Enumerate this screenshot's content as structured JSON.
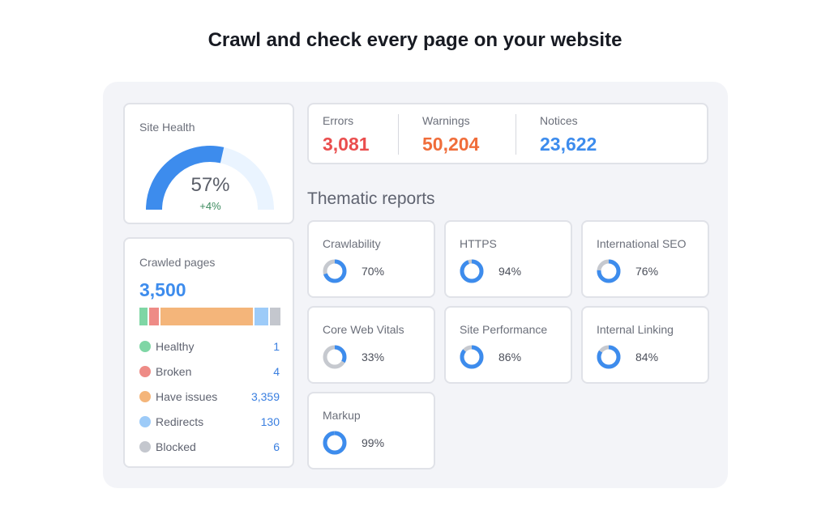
{
  "title": "Crawl and check every page on your website",
  "site_health": {
    "label": "Site Health",
    "value": "57%",
    "percent": 57,
    "change": "+4%"
  },
  "crawled": {
    "label": "Crawled pages",
    "total": "3,500",
    "items": [
      {
        "label": "Healthy",
        "value": "1",
        "color": "#7fd6a5"
      },
      {
        "label": "Broken",
        "value": "4",
        "color": "#ee8b86"
      },
      {
        "label": "Have issues",
        "value": "3,359",
        "color": "#f4b57a"
      },
      {
        "label": "Redirects",
        "value": "130",
        "color": "#9dcbf8"
      },
      {
        "label": "Blocked",
        "value": "6",
        "color": "#c4c7ce"
      }
    ]
  },
  "stats": [
    {
      "label": "Errors",
      "value": "3,081",
      "color": "#ea4e4e"
    },
    {
      "label": "Warnings",
      "value": "50,204",
      "color": "#f06d3a"
    },
    {
      "label": "Notices",
      "value": "23,622",
      "color": "#3d8ced"
    }
  ],
  "thematic": {
    "heading": "Thematic reports",
    "reports": [
      {
        "label": "Crawlability",
        "value": "70%",
        "percent": 70
      },
      {
        "label": "HTTPS",
        "value": "94%",
        "percent": 94
      },
      {
        "label": "International SEO",
        "value": "76%",
        "percent": 76
      },
      {
        "label": "Core Web Vitals",
        "value": "33%",
        "percent": 33
      },
      {
        "label": "Site Performance",
        "value": "86%",
        "percent": 86
      },
      {
        "label": "Internal Linking",
        "value": "84%",
        "percent": 84
      },
      {
        "label": "Markup",
        "value": "99%",
        "percent": 99
      }
    ]
  }
}
